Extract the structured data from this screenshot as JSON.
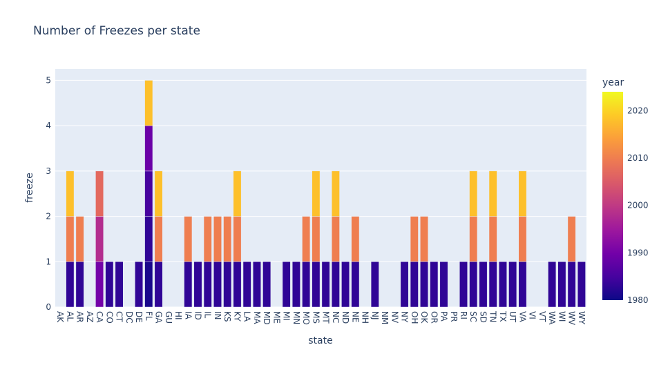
{
  "chart_data": {
    "type": "bar",
    "title": "Number of Freezes per state",
    "xlabel": "state",
    "ylabel": "freeze",
    "ylim": [
      0,
      5.25
    ],
    "yticks": [
      0,
      1,
      2,
      3,
      4,
      5
    ],
    "categories": [
      "AK",
      "AL",
      "AR",
      "AZ",
      "CA",
      "CO",
      "CT",
      "DC",
      "DE",
      "FL",
      "GA",
      "GU",
      "HI",
      "IA",
      "ID",
      "IL",
      "IN",
      "KS",
      "KY",
      "LA",
      "MA",
      "MD",
      "ME",
      "MI",
      "MN",
      "MO",
      "MS",
      "MT",
      "NC",
      "ND",
      "NE",
      "NH",
      "NJ",
      "NM",
      "NV",
      "NY",
      "OH",
      "OK",
      "OR",
      "PA",
      "PR",
      "RI",
      "SC",
      "SD",
      "TN",
      "TX",
      "UT",
      "VA",
      "VI",
      "VT",
      "WA",
      "WI",
      "WV",
      "WY"
    ],
    "stack_mode": "each segment has height 1 (one freeze event), colored by year",
    "segments_by_state": {
      "AL": [
        1983,
        2010,
        2018
      ],
      "AR": [
        1983,
        2010
      ],
      "CA": [
        1990,
        1998,
        2007
      ],
      "CO": [
        1983
      ],
      "CT": [
        1983
      ],
      "DE": [
        1983
      ],
      "FL": [
        1981,
        1983,
        1985,
        1989,
        2018
      ],
      "GA": [
        1983,
        2010,
        2018
      ],
      "IA": [
        1983,
        2010
      ],
      "ID": [
        1983
      ],
      "IL": [
        1983,
        2010
      ],
      "IN": [
        1983,
        2010
      ],
      "KS": [
        1983,
        2010
      ],
      "KY": [
        1983,
        2010,
        2018
      ],
      "LA": [
        1983
      ],
      "MA": [
        1983
      ],
      "MD": [
        1983
      ],
      "MI": [
        1983
      ],
      "MN": [
        1983
      ],
      "MO": [
        1983,
        2010
      ],
      "MS": [
        1983,
        2010,
        2018
      ],
      "MT": [
        1983
      ],
      "NC": [
        1983,
        2010,
        2018
      ],
      "ND": [
        1983
      ],
      "NE": [
        1983,
        2010
      ],
      "NJ": [
        1983
      ],
      "NY": [
        1983
      ],
      "OH": [
        1983,
        2010
      ],
      "OK": [
        1983,
        2010
      ],
      "OR": [
        1983
      ],
      "PA": [
        1983
      ],
      "RI": [
        1983
      ],
      "SC": [
        1983,
        2010,
        2018
      ],
      "SD": [
        1983
      ],
      "TN": [
        1983,
        2010,
        2018
      ],
      "TX": [
        1983
      ],
      "UT": [
        1983
      ],
      "VA": [
        1983,
        2010,
        2018
      ],
      "WA": [
        1983
      ],
      "WI": [
        1983
      ],
      "WV": [
        1983,
        2010
      ],
      "WY": [
        1983
      ]
    },
    "colorbar": {
      "title": "year",
      "range": [
        1980,
        2024
      ],
      "ticks": [
        1980,
        1990,
        2000,
        2010,
        2020
      ],
      "colorscale": [
        "#0d0887",
        "#46039f",
        "#7201a8",
        "#9c179e",
        "#bd3786",
        "#d8576b",
        "#ed7953",
        "#fb9f3a",
        "#fdca26",
        "#f0f921"
      ]
    },
    "grid": true,
    "background": "#e5ecf6"
  }
}
